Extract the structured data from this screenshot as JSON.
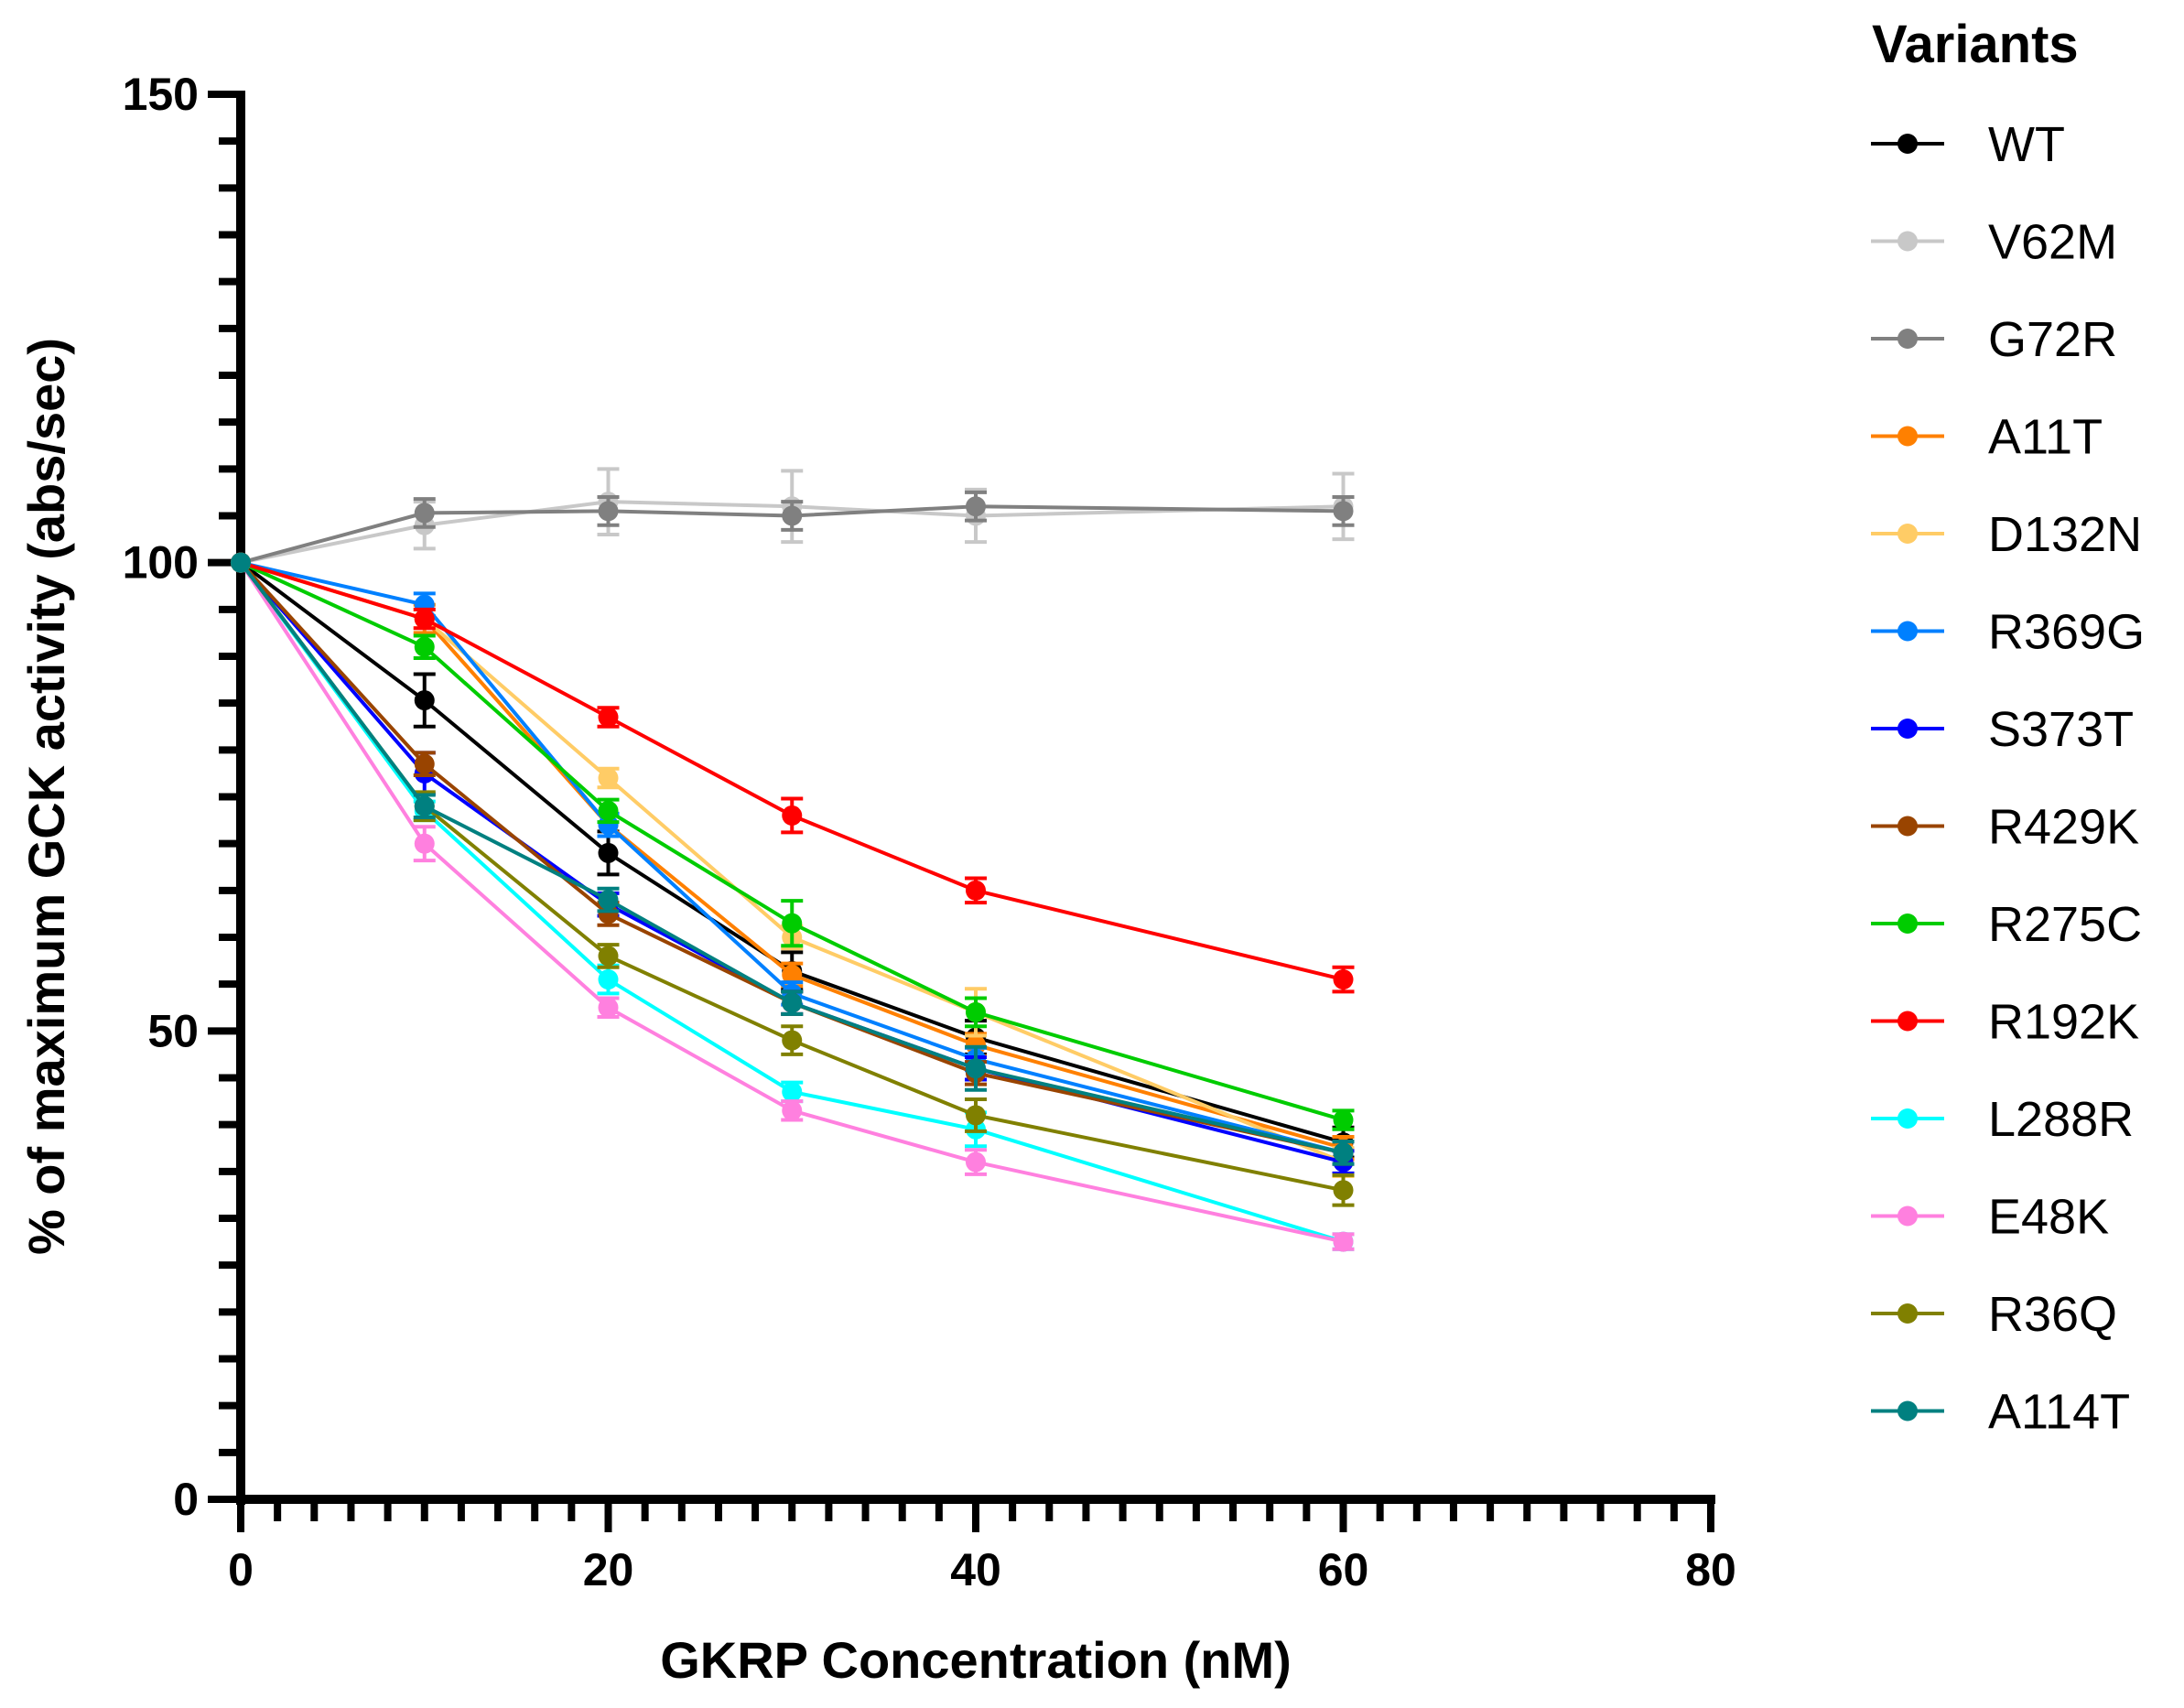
{
  "chart_data": {
    "type": "line",
    "title": "",
    "xlabel": "GKRP Concentration (nM)",
    "ylabel": "% of maximum GCK activity (abs/sec)",
    "xlim": [
      0,
      80
    ],
    "ylim": [
      0,
      150
    ],
    "xticks": [
      0,
      20,
      40,
      60,
      80
    ],
    "yticks": [
      0,
      50,
      100,
      150
    ],
    "grid": false,
    "legend": {
      "title": "Variants",
      "placement": "right"
    },
    "x": [
      0,
      10,
      20,
      30,
      40,
      60
    ],
    "series": [
      {
        "name": "WT",
        "color": "#000000",
        "values": [
          100,
          85.3,
          69,
          56.4,
          49.3,
          38.1
        ],
        "err": [
          0,
          2.8,
          2.3,
          2,
          1.8,
          1.6
        ]
      },
      {
        "name": "V62M",
        "color": "#c8c8c8",
        "values": [
          100,
          104,
          106.5,
          106,
          105,
          106
        ],
        "err": [
          0,
          2.5,
          3.5,
          3.8,
          2.8,
          3.5
        ]
      },
      {
        "name": "G72R",
        "color": "#808080",
        "values": [
          100,
          105.3,
          105.5,
          105,
          106,
          105.5
        ],
        "err": [
          0,
          1.5,
          1.5,
          1.5,
          1.5,
          1.5
        ]
      },
      {
        "name": "A11T",
        "color": "#ff8000",
        "values": [
          100,
          94,
          72,
          56,
          48.5,
          37.5
        ],
        "err": [
          0,
          1.5,
          1.2,
          1.2,
          1.2,
          1.2
        ]
      },
      {
        "name": "D132N",
        "color": "#ffcc66",
        "values": [
          100,
          94,
          77,
          60,
          52,
          36
        ],
        "err": [
          0,
          1,
          1,
          1.2,
          2.5,
          1.5
        ]
      },
      {
        "name": "R369G",
        "color": "#0080ff",
        "values": [
          100,
          95.5,
          72,
          54,
          47,
          37
        ],
        "err": [
          0,
          1.2,
          1.2,
          1.2,
          1.2,
          1.2
        ]
      },
      {
        "name": "S373T",
        "color": "#0000ff",
        "values": [
          100,
          77.5,
          63.5,
          53,
          46,
          36
        ],
        "err": [
          0,
          2.2,
          1.2,
          1.2,
          1.2,
          1.2
        ]
      },
      {
        "name": "R429K",
        "color": "#994400",
        "values": [
          100,
          78.5,
          62.5,
          53,
          45.5,
          37
        ],
        "err": [
          0,
          1.2,
          1.2,
          1.2,
          1.2,
          1.2
        ]
      },
      {
        "name": "R275C",
        "color": "#00cc00",
        "values": [
          100,
          91,
          73.5,
          61.5,
          52,
          40.5
        ],
        "err": [
          0,
          1.2,
          1.2,
          2.4,
          1.5,
          1
        ]
      },
      {
        "name": "R192K",
        "color": "#ff0000",
        "values": [
          100,
          94,
          83.5,
          73,
          65,
          55.5
        ],
        "err": [
          0,
          1,
          1,
          1.8,
          1.3,
          1.3
        ]
      },
      {
        "name": "L288R",
        "color": "#00ffff",
        "values": [
          100,
          73.5,
          55.5,
          43.5,
          39.5,
          27.5
        ],
        "err": [
          0,
          1,
          1.5,
          1,
          1.8,
          0.8
        ]
      },
      {
        "name": "E48K",
        "color": "#ff80df",
        "values": [
          100,
          70,
          52.5,
          41.5,
          36,
          27.5
        ],
        "err": [
          0,
          1.8,
          1,
          1,
          1.3,
          0.8
        ]
      },
      {
        "name": "R36Q",
        "color": "#808000",
        "values": [
          100,
          74,
          58,
          49,
          41,
          33
        ],
        "err": [
          0,
          1.5,
          1.2,
          1.5,
          1.7,
          1.6
        ]
      },
      {
        "name": "A114T",
        "color": "#008080",
        "values": [
          100,
          74,
          64,
          53,
          46,
          37
        ],
        "err": [
          0,
          1.2,
          1.2,
          1.2,
          2.3,
          1.2
        ]
      }
    ]
  }
}
